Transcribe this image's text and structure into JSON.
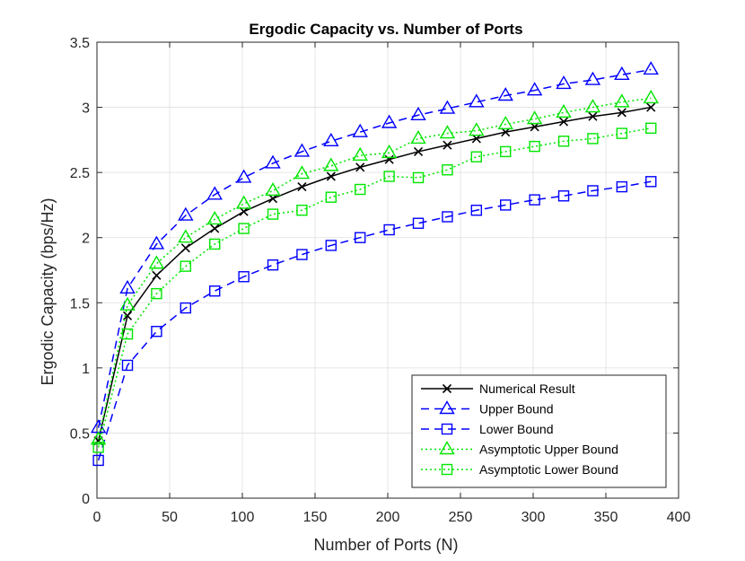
{
  "chart_data": {
    "type": "line",
    "title": "Ergodic Capacity vs. Number of Ports",
    "xlabel": "Number of Ports (N)",
    "ylabel": "Ergodic Capacity (bps/Hz)",
    "xlim": [
      0,
      400
    ],
    "ylim": [
      0,
      3.5
    ],
    "xticks": [
      0,
      50,
      100,
      150,
      200,
      250,
      300,
      350,
      400
    ],
    "yticks": [
      0,
      0.5,
      1,
      1.5,
      2,
      2.5,
      3,
      3.5
    ],
    "xtick_labels": [
      "0",
      "50",
      "100",
      "150",
      "200",
      "250",
      "300",
      "350",
      "400"
    ],
    "ytick_labels": [
      "0",
      "0.5",
      "1",
      "1.5",
      "2",
      "2.5",
      "3",
      "3.5"
    ],
    "grid": true,
    "legend_position": "bottom-right",
    "x": [
      1,
      21,
      41,
      61,
      81,
      101,
      121,
      141,
      161,
      181,
      201,
      221,
      241,
      261,
      281,
      301,
      321,
      341,
      361,
      381
    ],
    "series": [
      {
        "name": "Numerical Result",
        "color": "#000000",
        "dash": "solid",
        "marker": "x",
        "values": [
          0.44,
          1.4,
          1.71,
          1.92,
          2.07,
          2.2,
          2.3,
          2.39,
          2.47,
          2.54,
          2.6,
          2.66,
          2.71,
          2.76,
          2.81,
          2.85,
          2.89,
          2.93,
          2.96,
          3.0
        ]
      },
      {
        "name": "Upper Bound",
        "color": "#0000ff",
        "dash": "dashed",
        "marker": "triangle",
        "values": [
          0.54,
          1.61,
          1.95,
          2.17,
          2.33,
          2.46,
          2.57,
          2.66,
          2.74,
          2.81,
          2.88,
          2.94,
          2.99,
          3.04,
          3.09,
          3.13,
          3.18,
          3.21,
          3.25,
          3.29
        ]
      },
      {
        "name": "Lower Bound",
        "color": "#0000ff",
        "dash": "dashed",
        "marker": "square",
        "values": [
          0.29,
          1.02,
          1.28,
          1.46,
          1.59,
          1.7,
          1.79,
          1.87,
          1.94,
          2.0,
          2.06,
          2.11,
          2.16,
          2.21,
          2.25,
          2.29,
          2.32,
          2.36,
          2.39,
          2.43
        ]
      },
      {
        "name": "Asymptotic Upper Bound",
        "color": "#00e600",
        "dash": "dotted",
        "marker": "triangle",
        "values": [
          0.45,
          1.48,
          1.8,
          2.0,
          2.14,
          2.26,
          2.36,
          2.49,
          2.55,
          2.63,
          2.65,
          2.76,
          2.8,
          2.82,
          2.87,
          2.91,
          2.96,
          3.0,
          3.04,
          3.07
        ]
      },
      {
        "name": "Asymptotic Lower Bound",
        "color": "#00e600",
        "dash": "dotted",
        "marker": "square",
        "values": [
          0.39,
          1.26,
          1.57,
          1.78,
          1.95,
          2.07,
          2.18,
          2.21,
          2.31,
          2.37,
          2.47,
          2.46,
          2.52,
          2.62,
          2.66,
          2.7,
          2.74,
          2.76,
          2.8,
          2.84
        ]
      }
    ]
  }
}
